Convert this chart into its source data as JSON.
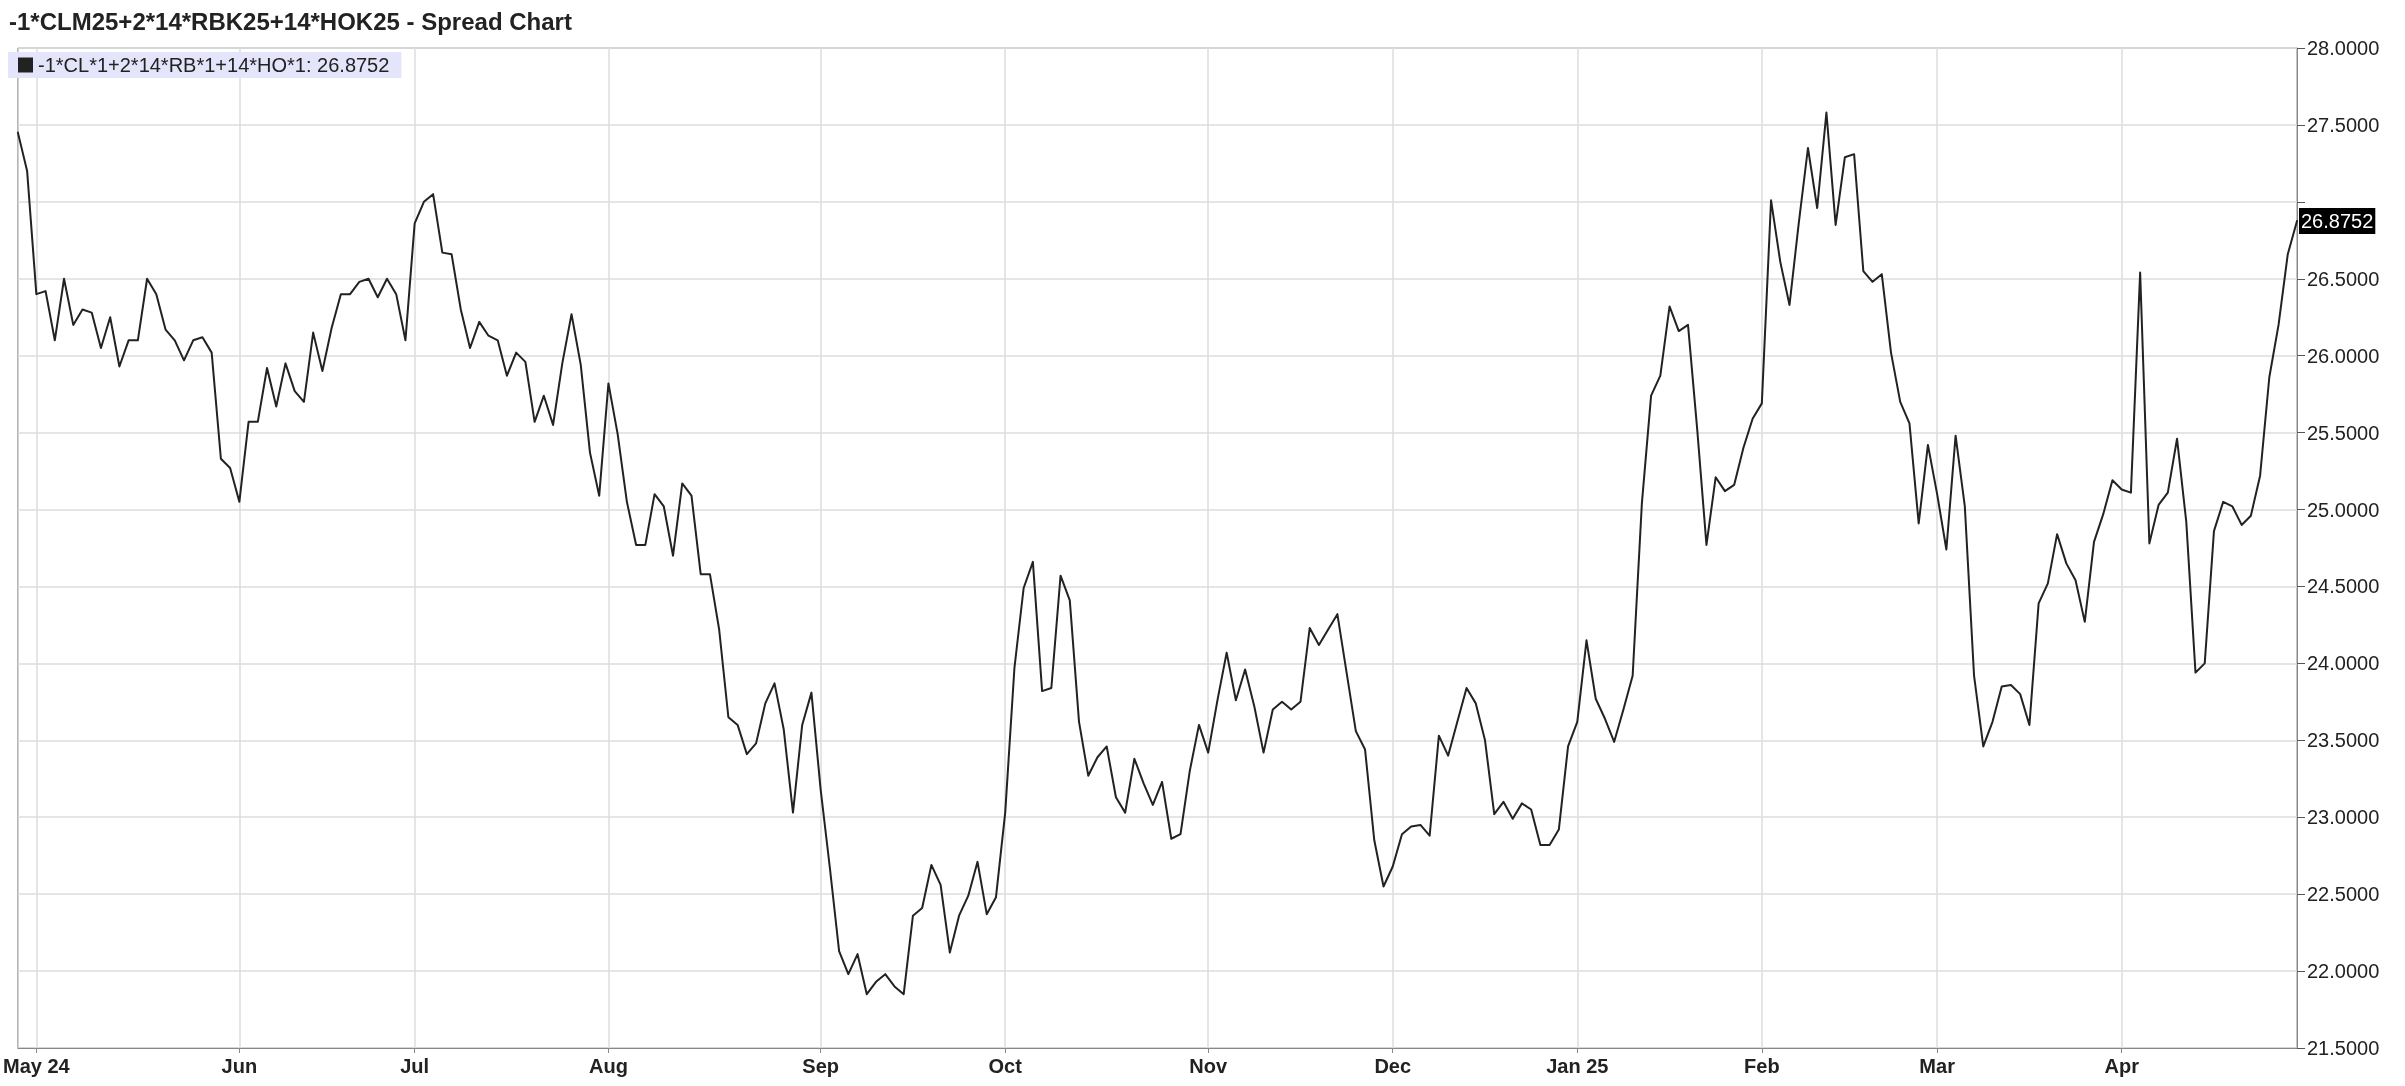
{
  "chart_data": {
    "type": "line",
    "title": "-1*CLM25+2*14*RBK25+14*HOK25 - Spread Chart",
    "categories": [
      null,
      null,
      "May 24",
      null,
      null,
      null,
      null,
      null,
      null,
      null,
      null,
      null,
      null,
      null,
      null,
      null,
      null,
      null,
      null,
      null,
      null,
      null,
      null,
      null,
      "Jun",
      null,
      null,
      null,
      null,
      null,
      null,
      null,
      null,
      null,
      null,
      null,
      null,
      null,
      null,
      null,
      null,
      null,
      null,
      "Jul",
      null,
      null,
      null,
      null,
      null,
      null,
      null,
      null,
      null,
      null,
      null,
      null,
      null,
      null,
      null,
      null,
      null,
      null,
      null,
      null,
      "Aug",
      null,
      null,
      null,
      null,
      null,
      null,
      null,
      null,
      null,
      null,
      null,
      null,
      null,
      null,
      null,
      null,
      null,
      null,
      null,
      null,
      null,
      null,
      "Sep",
      null,
      null,
      null,
      null,
      null,
      null,
      null,
      null,
      null,
      null,
      null,
      null,
      null,
      null,
      null,
      null,
      null,
      null,
      null,
      "Oct",
      null,
      null,
      null,
      null,
      null,
      null,
      null,
      null,
      null,
      null,
      null,
      null,
      null,
      null,
      null,
      null,
      null,
      null,
      null,
      null,
      null,
      "Nov",
      null,
      null,
      null,
      null,
      null,
      null,
      null,
      null,
      null,
      null,
      null,
      null,
      null,
      null,
      null,
      null,
      null,
      null,
      null,
      "Dec",
      null,
      null,
      null,
      null,
      null,
      null,
      null,
      null,
      null,
      null,
      null,
      null,
      null,
      null,
      null,
      null,
      null,
      null,
      null,
      "Jan 25",
      null,
      null,
      null,
      null,
      null,
      null,
      null,
      null,
      null,
      null,
      null,
      null,
      null,
      null,
      null,
      null,
      null,
      null,
      null,
      "Feb",
      null,
      null,
      null,
      null,
      null,
      null,
      null,
      null,
      null,
      null,
      null,
      null,
      null,
      null,
      null,
      null,
      null,
      null,
      "Mar",
      null,
      null,
      null,
      null,
      null,
      null,
      null,
      null,
      null,
      null,
      null,
      null,
      null,
      null,
      null,
      null,
      null,
      null,
      null,
      "Apr",
      null,
      null,
      null,
      null,
      null,
      null,
      null,
      null,
      null,
      null,
      null,
      null,
      null,
      null,
      null,
      null,
      null,
      null,
      null
    ],
    "series": [
      {
        "name": "-1*CL*1+2*14*RB*1+14*HO*1: 26.8752",
        "color": "#222222",
        "values": [
          27.45,
          27.2,
          26.4,
          26.42,
          26.1,
          26.5,
          26.2,
          26.3,
          26.28,
          26.05,
          26.25,
          25.93,
          26.1,
          26.1,
          26.5,
          26.4,
          26.17,
          26.1,
          25.97,
          26.1,
          26.12,
          26.02,
          25.33,
          25.27,
          25.05,
          25.57,
          25.57,
          25.92,
          25.67,
          25.95,
          25.77,
          25.7,
          26.15,
          25.9,
          26.18,
          26.4,
          26.4,
          26.48,
          26.5,
          26.38,
          26.5,
          26.4,
          26.1,
          26.86,
          27.0,
          27.05,
          26.67,
          26.66,
          26.3,
          26.05,
          26.22,
          26.13,
          26.1,
          25.87,
          26.02,
          25.96,
          25.57,
          25.74,
          25.55,
          25.95,
          26.27,
          25.94,
          25.37,
          25.09,
          25.82,
          25.49,
          25.05,
          24.77,
          24.77,
          25.1,
          25.02,
          24.7,
          25.17,
          25.09,
          24.58,
          24.58,
          24.22,
          23.65,
          23.6,
          23.41,
          23.48,
          23.74,
          23.87,
          23.57,
          23.03,
          23.6,
          23.81,
          23.18,
          22.67,
          22.13,
          21.98,
          22.11,
          21.85,
          21.93,
          21.98,
          21.9,
          21.85,
          22.36,
          22.41,
          22.69,
          22.56,
          22.12,
          22.36,
          22.49,
          22.71,
          22.37,
          22.48,
          23.03,
          23.97,
          24.49,
          24.66,
          23.82,
          23.84,
          24.57,
          24.41,
          23.62,
          23.27,
          23.39,
          23.46,
          23.13,
          23.03,
          23.38,
          23.22,
          23.08,
          23.23,
          22.86,
          22.89,
          23.3,
          23.6,
          23.42,
          23.76,
          24.07,
          23.76,
          23.96,
          23.72,
          23.42,
          23.7,
          23.75,
          23.7,
          23.75,
          24.23,
          24.12,
          24.22,
          24.32,
          23.94,
          23.56,
          23.44,
          22.85,
          22.55,
          22.68,
          22.89,
          22.94,
          22.95,
          22.88,
          23.53,
          23.4,
          23.62,
          23.84,
          23.74,
          23.5,
          23.02,
          23.1,
          22.99,
          23.09,
          23.05,
          22.82,
          22.82,
          22.92,
          23.46,
          23.62,
          24.15,
          23.77,
          23.64,
          23.49,
          23.7,
          23.92,
          25.04,
          25.74,
          25.87,
          26.32,
          26.16,
          26.2,
          25.52,
          24.77,
          25.21,
          25.12,
          25.16,
          25.4,
          25.59,
          25.69,
          27.01,
          26.61,
          26.33,
          26.86,
          27.35,
          26.96,
          27.58,
          26.85,
          27.29,
          27.31,
          26.55,
          26.48,
          26.53,
          26.02,
          25.7,
          25.56,
          24.91,
          25.42,
          25.1,
          24.74,
          25.48,
          25.02,
          23.92,
          23.46,
          23.62,
          23.85,
          23.86,
          23.8,
          23.6,
          24.39,
          24.52,
          24.84,
          24.65,
          24.54,
          24.27,
          24.79,
          24.97,
          25.19,
          25.13,
          25.11,
          26.54,
          24.78,
          25.03,
          25.11,
          25.46,
          24.92,
          23.94,
          24.0,
          24.86,
          25.05,
          25.02,
          24.9,
          24.96,
          25.22,
          25.86,
          26.2,
          26.66,
          26.8752
        ]
      }
    ],
    "ylim": [
      21.5,
      28
    ],
    "yticks": [
      {
        "value": 21.5,
        "label": "21.5000"
      },
      {
        "value": 22,
        "label": "22.0000"
      },
      {
        "value": 22.5,
        "label": "22.5000"
      },
      {
        "value": 23,
        "label": "23.0000"
      },
      {
        "value": 23.5,
        "label": "23.5000"
      },
      {
        "value": 24,
        "label": "24.0000"
      },
      {
        "value": 24.5,
        "label": "24.5000"
      },
      {
        "value": 25,
        "label": "25.0000"
      },
      {
        "value": 25.5,
        "label": "25.5000"
      },
      {
        "value": 26,
        "label": "26.0000"
      },
      {
        "value": 26.5,
        "label": "26.5000"
      },
      {
        "value": 27,
        "label": null
      },
      {
        "value": 27.5,
        "label": "27.5000"
      },
      {
        "value": 28,
        "label": "28.0000"
      }
    ],
    "annotations": [
      "26.8752"
    ],
    "grid": true,
    "legend": "top left",
    "marker": "none",
    "line_style": "solid"
  }
}
